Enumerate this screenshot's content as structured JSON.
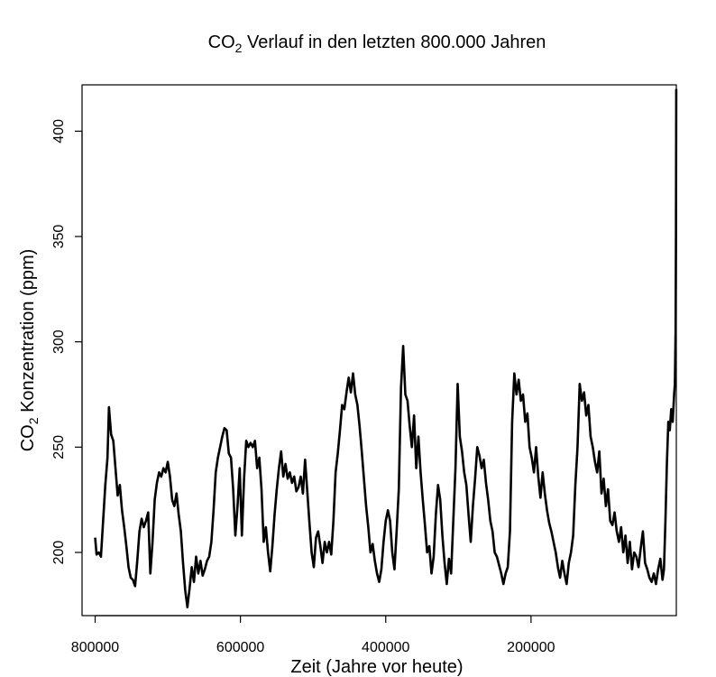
{
  "chart_data": {
    "type": "line",
    "title_prefix": "CO",
    "title_subscript": "2",
    "title_rest": " Verlauf in den letzten 800.000 Jahren",
    "xlabel": "Zeit (Jahre vor heute)",
    "ylabel_prefix": "CO",
    "ylabel_subscript": "2",
    "ylabel_rest": " Konzentration (ppm)",
    "x_reversed": true,
    "xlim": [
      818000,
      0
    ],
    "ylim": [
      170,
      422
    ],
    "x_ticks": [
      800000,
      600000,
      400000,
      200000
    ],
    "x_tick_labels": [
      "800000",
      "600000",
      "400000",
      "200000"
    ],
    "y_ticks": [
      200,
      250,
      300,
      350,
      400
    ],
    "y_tick_labels": [
      "200",
      "250",
      "300",
      "350",
      "400"
    ],
    "grid": false,
    "legend": "none",
    "line_color": "#000000",
    "series": [
      {
        "points": [
          [
            800000,
            207
          ],
          [
            798000,
            199
          ],
          [
            795000,
            200
          ],
          [
            792000,
            198
          ],
          [
            789000,
            215
          ],
          [
            786000,
            232
          ],
          [
            783000,
            245
          ],
          [
            781000,
            269
          ],
          [
            778000,
            256
          ],
          [
            775000,
            253
          ],
          [
            772000,
            240
          ],
          [
            769000,
            227
          ],
          [
            766000,
            232
          ],
          [
            763000,
            220
          ],
          [
            760000,
            212
          ],
          [
            757000,
            203
          ],
          [
            754000,
            193
          ],
          [
            751000,
            188
          ],
          [
            748000,
            187
          ],
          [
            745000,
            184
          ],
          [
            742000,
            196
          ],
          [
            739000,
            210
          ],
          [
            736000,
            216
          ],
          [
            733000,
            212
          ],
          [
            730000,
            215
          ],
          [
            727000,
            219
          ],
          [
            724000,
            190
          ],
          [
            721000,
            205
          ],
          [
            718000,
            225
          ],
          [
            715000,
            233
          ],
          [
            712000,
            238
          ],
          [
            709000,
            236
          ],
          [
            706000,
            240
          ],
          [
            703000,
            238
          ],
          [
            700000,
            243
          ],
          [
            697000,
            236
          ],
          [
            694000,
            225
          ],
          [
            691000,
            222
          ],
          [
            688000,
            228
          ],
          [
            685000,
            218
          ],
          [
            682000,
            210
          ],
          [
            679000,
            195
          ],
          [
            676000,
            182
          ],
          [
            673000,
            174
          ],
          [
            670000,
            183
          ],
          [
            667000,
            193
          ],
          [
            664000,
            186
          ],
          [
            661000,
            198
          ],
          [
            658000,
            190
          ],
          [
            655000,
            196
          ],
          [
            652000,
            189
          ],
          [
            649000,
            192
          ],
          [
            646000,
            196
          ],
          [
            643000,
            198
          ],
          [
            640000,
            205
          ],
          [
            637000,
            220
          ],
          [
            634000,
            238
          ],
          [
            631000,
            245
          ],
          [
            628000,
            250
          ],
          [
            625000,
            255
          ],
          [
            622000,
            259
          ],
          [
            619000,
            258
          ],
          [
            616000,
            247
          ],
          [
            613000,
            245
          ],
          [
            610000,
            230
          ],
          [
            607000,
            208
          ],
          [
            604000,
            222
          ],
          [
            601000,
            240
          ],
          [
            598000,
            208
          ],
          [
            595000,
            235
          ],
          [
            592000,
            253
          ],
          [
            589000,
            250
          ],
          [
            586000,
            252
          ],
          [
            583000,
            250
          ],
          [
            580000,
            253
          ],
          [
            577000,
            240
          ],
          [
            574000,
            245
          ],
          [
            571000,
            230
          ],
          [
            568000,
            205
          ],
          [
            565000,
            212
          ],
          [
            562000,
            200
          ],
          [
            559000,
            191
          ],
          [
            556000,
            203
          ],
          [
            553000,
            218
          ],
          [
            550000,
            230
          ],
          [
            547000,
            240
          ],
          [
            544000,
            248
          ],
          [
            541000,
            236
          ],
          [
            538000,
            242
          ],
          [
            535000,
            235
          ],
          [
            532000,
            238
          ],
          [
            529000,
            233
          ],
          [
            526000,
            236
          ],
          [
            523000,
            229
          ],
          [
            520000,
            231
          ],
          [
            517000,
            236
          ],
          [
            514000,
            228
          ],
          [
            511000,
            244
          ],
          [
            508000,
            229
          ],
          [
            505000,
            214
          ],
          [
            502000,
            200
          ],
          [
            499000,
            193
          ],
          [
            496000,
            207
          ],
          [
            493000,
            210
          ],
          [
            490000,
            203
          ],
          [
            487000,
            195
          ],
          [
            484000,
            205
          ],
          [
            481000,
            200
          ],
          [
            478000,
            205
          ],
          [
            475000,
            199
          ],
          [
            472000,
            215
          ],
          [
            469000,
            238
          ],
          [
            466000,
            247
          ],
          [
            463000,
            258
          ],
          [
            460000,
            270
          ],
          [
            457000,
            268
          ],
          [
            454000,
            276
          ],
          [
            451000,
            283
          ],
          [
            448000,
            276
          ],
          [
            445000,
            285
          ],
          [
            442000,
            275
          ],
          [
            439000,
            270
          ],
          [
            436000,
            260
          ],
          [
            433000,
            248
          ],
          [
            430000,
            235
          ],
          [
            427000,
            222
          ],
          [
            424000,
            212
          ],
          [
            421000,
            200
          ],
          [
            418000,
            204
          ],
          [
            415000,
            196
          ],
          [
            412000,
            190
          ],
          [
            409000,
            186
          ],
          [
            406000,
            192
          ],
          [
            403000,
            205
          ],
          [
            400000,
            215
          ],
          [
            397000,
            220
          ],
          [
            394000,
            215
          ],
          [
            391000,
            200
          ],
          [
            388000,
            192
          ],
          [
            385000,
            210
          ],
          [
            382000,
            230
          ],
          [
            379000,
            278
          ],
          [
            376000,
            298
          ],
          [
            373000,
            275
          ],
          [
            370000,
            272
          ],
          [
            367000,
            260
          ],
          [
            364000,
            250
          ],
          [
            361000,
            265
          ],
          [
            358000,
            240
          ],
          [
            355000,
            255
          ],
          [
            352000,
            238
          ],
          [
            349000,
            225
          ],
          [
            346000,
            213
          ],
          [
            343000,
            200
          ],
          [
            340000,
            203
          ],
          [
            337000,
            190
          ],
          [
            334000,
            198
          ],
          [
            331000,
            218
          ],
          [
            328000,
            232
          ],
          [
            325000,
            225
          ],
          [
            322000,
            208
          ],
          [
            319000,
            195
          ],
          [
            316000,
            185
          ],
          [
            313000,
            197
          ],
          [
            310000,
            190
          ],
          [
            307000,
            215
          ],
          [
            304000,
            240
          ],
          [
            301000,
            280
          ],
          [
            298000,
            255
          ],
          [
            295000,
            248
          ],
          [
            292000,
            238
          ],
          [
            289000,
            232
          ],
          [
            286000,
            218
          ],
          [
            283000,
            205
          ],
          [
            280000,
            222
          ],
          [
            277000,
            235
          ],
          [
            274000,
            250
          ],
          [
            271000,
            246
          ],
          [
            268000,
            240
          ],
          [
            265000,
            244
          ],
          [
            262000,
            233
          ],
          [
            259000,
            225
          ],
          [
            256000,
            215
          ],
          [
            253000,
            210
          ],
          [
            250000,
            200
          ],
          [
            247000,
            198
          ],
          [
            244000,
            194
          ],
          [
            241000,
            190
          ],
          [
            238000,
            185
          ],
          [
            235000,
            190
          ],
          [
            232000,
            193
          ],
          [
            229000,
            210
          ],
          [
            226000,
            262
          ],
          [
            223000,
            285
          ],
          [
            220000,
            275
          ],
          [
            217000,
            282
          ],
          [
            214000,
            272
          ],
          [
            211000,
            275
          ],
          [
            208000,
            262
          ],
          [
            205000,
            266
          ],
          [
            202000,
            250
          ],
          [
            199000,
            245
          ],
          [
            196000,
            238
          ],
          [
            193000,
            250
          ],
          [
            190000,
            236
          ],
          [
            187000,
            226
          ],
          [
            184000,
            238
          ],
          [
            181000,
            228
          ],
          [
            178000,
            220
          ],
          [
            175000,
            214
          ],
          [
            172000,
            210
          ],
          [
            169000,
            205
          ],
          [
            166000,
            200
          ],
          [
            163000,
            193
          ],
          [
            160000,
            188
          ],
          [
            157000,
            196
          ],
          [
            154000,
            190
          ],
          [
            151000,
            185
          ],
          [
            148000,
            195
          ],
          [
            145000,
            200
          ],
          [
            142000,
            208
          ],
          [
            139000,
            232
          ],
          [
            136000,
            250
          ],
          [
            133000,
            280
          ],
          [
            130000,
            272
          ],
          [
            127000,
            276
          ],
          [
            124000,
            265
          ],
          [
            121000,
            270
          ],
          [
            118000,
            255
          ],
          [
            115000,
            250
          ],
          [
            112000,
            243
          ],
          [
            109000,
            238
          ],
          [
            106000,
            248
          ],
          [
            103000,
            228
          ],
          [
            100000,
            235
          ],
          [
            97000,
            222
          ],
          [
            94000,
            230
          ],
          [
            91000,
            215
          ],
          [
            88000,
            213
          ],
          [
            85000,
            219
          ],
          [
            82000,
            210
          ],
          [
            79000,
            205
          ],
          [
            76000,
            212
          ],
          [
            73000,
            200
          ],
          [
            70000,
            208
          ],
          [
            67000,
            195
          ],
          [
            64000,
            205
          ],
          [
            61000,
            192
          ],
          [
            58000,
            200
          ],
          [
            55000,
            198
          ],
          [
            52000,
            193
          ],
          [
            49000,
            202
          ],
          [
            46000,
            210
          ],
          [
            43000,
            195
          ],
          [
            40000,
            192
          ],
          [
            37000,
            188
          ],
          [
            34000,
            186
          ],
          [
            31000,
            190
          ],
          [
            28000,
            185
          ],
          [
            25000,
            192
          ],
          [
            22000,
            197
          ],
          [
            19000,
            187
          ],
          [
            17000,
            192
          ],
          [
            15000,
            215
          ],
          [
            13000,
            242
          ],
          [
            11000,
            262
          ],
          [
            9000,
            258
          ],
          [
            7000,
            268
          ],
          [
            5000,
            262
          ],
          [
            3000,
            275
          ],
          [
            2000,
            280
          ],
          [
            1000,
            305
          ],
          [
            500,
            350
          ],
          [
            100,
            420
          ]
        ]
      }
    ]
  }
}
